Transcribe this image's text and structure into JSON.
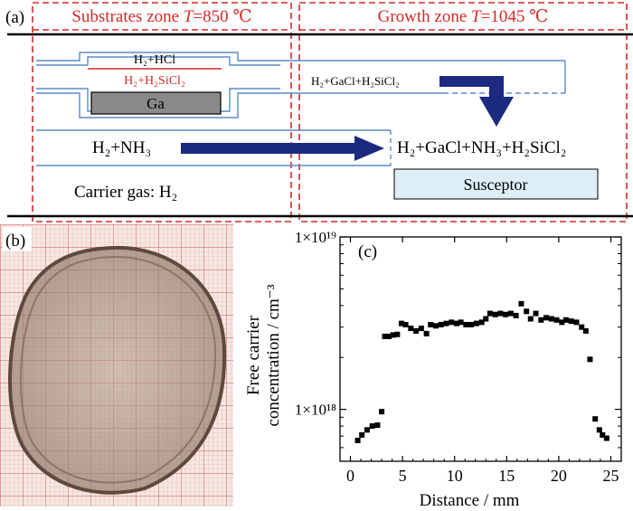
{
  "panel_a": {
    "label": "(a)",
    "zone_left": {
      "title_prefix": "Substrates zone ",
      "var": "T",
      "title_suffix": "=850 ℃"
    },
    "zone_right": {
      "title_prefix": "Growth zone ",
      "var": "T",
      "title_suffix": "=1045 ℃"
    },
    "gas_hcl": "H₂+HCl",
    "gas_sicl": "H₂+H₂SiCl₂",
    "boat": "Ga",
    "gas_gacl": "H₂+GaCl+H₂SiCl₂",
    "gas_nh3": "H₂+NH₃",
    "gas_mix": "H₂+GaCl+NH₃+H₂SiCl₂",
    "susceptor": "Susceptor",
    "carrier": "Carrier gas: H₂",
    "colors": {
      "zone_border": "#d42a2a",
      "tube": "#5b8cc9",
      "arrow": "#1c2a80",
      "boat": "#8a8a8a",
      "susceptor": "#ddeef6",
      "sicl_line": "#d42a2a"
    }
  },
  "panel_b": {
    "label": "(b)",
    "description_icon": "gan-wafer-on-graph-paper"
  },
  "panel_c": {
    "label": "(c)"
  },
  "chart_data": {
    "type": "scatter",
    "title": "",
    "xlabel": "Distance / mm",
    "ylabel_line1": "Free carrier",
    "ylabel_line2": "concentration / cm⁻³",
    "xlim": [
      -1,
      26
    ],
    "ylim_log": [
      5e+17,
      1e+19
    ],
    "yscale": "log",
    "x_ticks": [
      0,
      5,
      10,
      15,
      20,
      25
    ],
    "x_tick_labels": [
      "0",
      "5",
      "10",
      "15",
      "20",
      "25"
    ],
    "y_tick_labels": [
      "1×10¹⁹",
      "1×10¹⁸"
    ],
    "y_tick_values": [
      1e+19,
      1e+18
    ],
    "marker": "square",
    "points": [
      [
        0.7,
        6.6e+17
      ],
      [
        1.1,
        7.1e+17
      ],
      [
        1.6,
        7.6e+17
      ],
      [
        2.1,
        8e+17
      ],
      [
        2.6,
        8.1e+17
      ],
      [
        3.0,
        9.7e+17
      ],
      [
        3.3,
        2.65e+18
      ],
      [
        3.7,
        2.65e+18
      ],
      [
        4.1,
        2.7e+18
      ],
      [
        4.5,
        2.72e+18
      ],
      [
        4.9,
        3.15e+18
      ],
      [
        5.3,
        3.1e+18
      ],
      [
        5.8,
        2.95e+18
      ],
      [
        6.3,
        2.85e+18
      ],
      [
        6.8,
        2.95e+18
      ],
      [
        7.3,
        2.75e+18
      ],
      [
        7.7,
        3.1e+18
      ],
      [
        8.2,
        3.05e+18
      ],
      [
        8.7,
        3.1e+18
      ],
      [
        9.2,
        3.15e+18
      ],
      [
        9.7,
        3.2e+18
      ],
      [
        10.2,
        3.15e+18
      ],
      [
        10.6,
        3.2e+18
      ],
      [
        11.1,
        3.1e+18
      ],
      [
        11.6,
        3.1e+18
      ],
      [
        12.1,
        3.15e+18
      ],
      [
        12.6,
        3.2e+18
      ],
      [
        13.0,
        3.35e+18
      ],
      [
        13.4,
        3.6e+18
      ],
      [
        13.9,
        3.55e+18
      ],
      [
        14.4,
        3.6e+18
      ],
      [
        14.9,
        3.55e+18
      ],
      [
        15.4,
        3.6e+18
      ],
      [
        15.9,
        3.5e+18
      ],
      [
        16.4,
        4.1e+18
      ],
      [
        16.9,
        3.7e+18
      ],
      [
        17.3,
        3.35e+18
      ],
      [
        17.8,
        3.6e+18
      ],
      [
        18.3,
        3.3e+18
      ],
      [
        18.8,
        3.4e+18
      ],
      [
        19.3,
        3.35e+18
      ],
      [
        19.8,
        3.3e+18
      ],
      [
        20.3,
        3.2e+18
      ],
      [
        20.7,
        3.3e+18
      ],
      [
        21.2,
        3.25e+18
      ],
      [
        21.7,
        3.2e+18
      ],
      [
        22.2,
        3e+18
      ],
      [
        22.6,
        2.85e+18
      ],
      [
        23.0,
        1.95e+18
      ],
      [
        23.5,
        8.8e+17
      ],
      [
        23.9,
        7.6e+17
      ],
      [
        24.2,
        7.1e+17
      ],
      [
        24.6,
        6.8e+17
      ]
    ]
  }
}
